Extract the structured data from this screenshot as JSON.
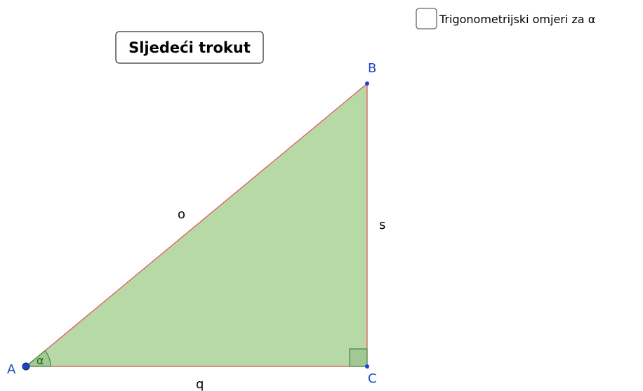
{
  "button": {
    "label": "Sljedeći trokut"
  },
  "checkbox": {
    "label": "Trigonometrijski omjeri za α"
  },
  "points": {
    "A": "A",
    "B": "B",
    "C": "C"
  },
  "sides": {
    "hypotenuse": "o",
    "opposite": "s",
    "adjacent": "q"
  },
  "angle": {
    "label": "α"
  }
}
